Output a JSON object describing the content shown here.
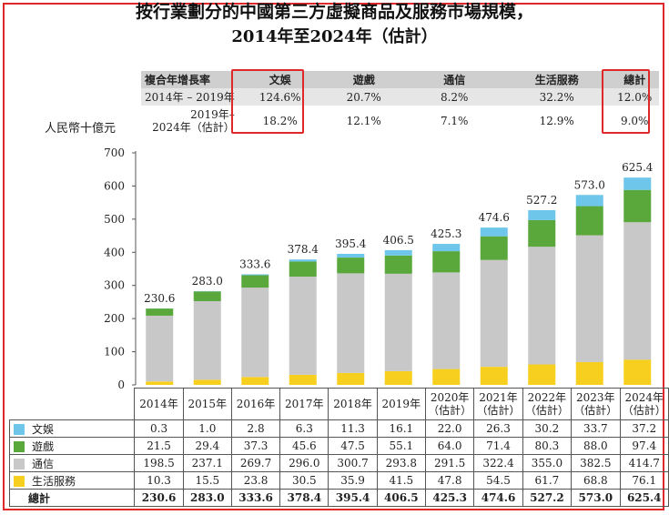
{
  "title_line1": "按行業劃分的中國第三方虛擬商品及服務市場規模，",
  "title_line2": "2014年至2024年（估計）",
  "unit_label": "人民幣十億元",
  "colors": {
    "文娛": "#6ec6ea",
    "遊戲": "#5aa83c",
    "通信": "#c8c8c8",
    "生活服務": "#f7cf1e",
    "highlight": "#e0282a"
  },
  "cagr_table": {
    "header": [
      "複合年增長率",
      "文娛",
      "遊戲",
      "通信",
      "生活服務",
      "總計"
    ],
    "rows": [
      {
        "label": "2014年 – 2019年",
        "values": [
          "124.6%",
          "20.7%",
          "8.2%",
          "32.2%",
          "12.0%"
        ]
      },
      {
        "label_line1": "2019年–",
        "label_line2": "2024年（估計）",
        "values": [
          "18.2%",
          "12.1%",
          "7.1%",
          "12.9%",
          "9.0%"
        ]
      }
    ]
  },
  "chart_data": {
    "type": "bar",
    "stacked": true,
    "categories": [
      "2014年",
      "2015年",
      "2016年",
      "2017年",
      "2018年",
      "2019年",
      "2020年（估計）",
      "2021年（估計）",
      "2022年（估計）",
      "2023年（估計）",
      "2024年（估計）"
    ],
    "category_labels": [
      [
        "2014年"
      ],
      [
        "2015年"
      ],
      [
        "2016年"
      ],
      [
        "2017年"
      ],
      [
        "2018年"
      ],
      [
        "2019年"
      ],
      [
        "2020年",
        "（估計）"
      ],
      [
        "2021年",
        "（估計）"
      ],
      [
        "2022年",
        "（估計）"
      ],
      [
        "2023年",
        "（估計）"
      ],
      [
        "2024年",
        "（估計）"
      ]
    ],
    "series": [
      {
        "name": "生活服務",
        "values": [
          10.3,
          15.5,
          23.8,
          30.5,
          35.9,
          41.5,
          47.8,
          54.5,
          61.7,
          68.8,
          76.1
        ]
      },
      {
        "name": "通信",
        "values": [
          198.5,
          237.1,
          269.7,
          296.0,
          300.7,
          293.8,
          291.5,
          322.4,
          355.0,
          382.5,
          414.7
        ]
      },
      {
        "name": "遊戲",
        "values": [
          21.5,
          29.4,
          37.3,
          45.6,
          47.5,
          55.1,
          64.0,
          71.4,
          80.3,
          88.0,
          97.4
        ]
      },
      {
        "name": "文娛",
        "values": [
          0.3,
          1.0,
          2.8,
          6.3,
          11.3,
          16.1,
          22.0,
          26.3,
          30.2,
          33.7,
          37.2
        ]
      }
    ],
    "totals": [
      230.6,
      283.0,
      333.6,
      378.4,
      395.4,
      406.5,
      425.3,
      474.6,
      527.2,
      573.0,
      625.4
    ],
    "totals_label": "總計",
    "yticks": [
      0,
      100,
      200,
      300,
      400,
      500,
      600,
      700
    ],
    "ylim": [
      0,
      700
    ],
    "ylabel": "人民幣十億元",
    "grid": false,
    "legend": "table-below"
  }
}
